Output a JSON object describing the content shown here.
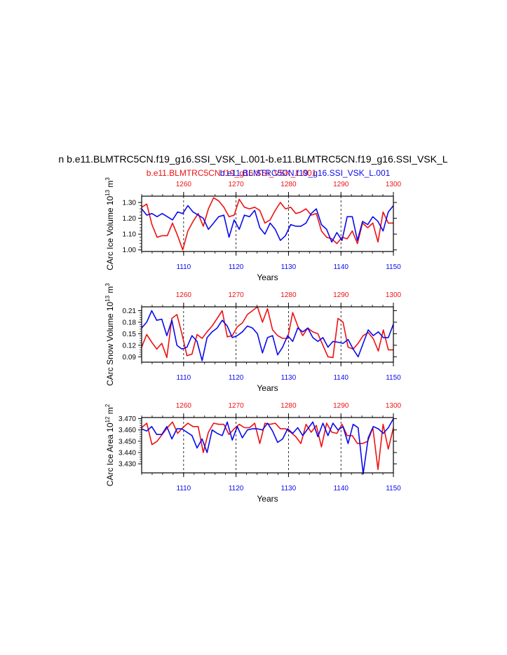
{
  "main_title": "n b.e11.BLMTRC5CN.f19_g16.SSI_VSK_L.001-b.e11.BLMTRC5CN.f19_g16.SSI_VSK_L",
  "legend": {
    "red_label": "b.e11.BLMTRC5CN.f19_g16.SSI_VSK_L.001",
    "blue_label": "b.e11.BLMTRC5CN.f19_g16.SSI_VSK_L.001"
  },
  "colors": {
    "red": "#ee1111",
    "blue": "#0a0aee",
    "axis": "#000000"
  },
  "chart_data": [
    {
      "type": "line",
      "ylabel_main": "CArc Ice Volume 10",
      "ylabel_exp": "13",
      "ylabel_unit": " m",
      "ylabel_unit_exp": "3",
      "xlabel": "Years",
      "ylim": [
        0.99,
        1.34
      ],
      "yticks": [
        "1.00",
        "1.10",
        "1.20",
        "1.30"
      ],
      "x_bottom": {
        "range": [
          1102,
          1150
        ],
        "ticks": [
          1110,
          1120,
          1130,
          1140,
          1150
        ]
      },
      "x_top": {
        "range": [
          1252,
          1300
        ],
        "ticks": [
          1260,
          1270,
          1280,
          1290,
          1300
        ]
      },
      "series": [
        {
          "color": "red",
          "values": [
            1.27,
            1.29,
            1.16,
            1.08,
            1.09,
            1.09,
            1.17,
            1.09,
            1.0,
            1.12,
            1.18,
            1.23,
            1.15,
            1.26,
            1.33,
            1.31,
            1.27,
            1.21,
            1.22,
            1.32,
            1.27,
            1.26,
            1.27,
            1.25,
            1.17,
            1.19,
            1.25,
            1.3,
            1.26,
            1.27,
            1.23,
            1.24,
            1.26,
            1.22,
            1.23,
            1.12,
            1.08,
            1.07,
            1.04,
            1.08,
            1.07,
            1.12,
            1.04,
            1.17,
            1.14,
            1.17,
            1.05,
            1.24,
            1.17,
            1.17
          ]
        },
        {
          "color": "blue",
          "values": [
            1.26,
            1.22,
            1.23,
            1.21,
            1.23,
            1.21,
            1.19,
            1.24,
            1.23,
            1.28,
            1.24,
            1.22,
            1.2,
            1.13,
            1.17,
            1.21,
            1.22,
            1.08,
            1.19,
            1.13,
            1.22,
            1.21,
            1.25,
            1.14,
            1.1,
            1.17,
            1.13,
            1.06,
            1.09,
            1.16,
            1.15,
            1.15,
            1.17,
            1.23,
            1.26,
            1.16,
            1.13,
            1.05,
            1.11,
            1.06,
            1.21,
            1.21,
            1.06,
            1.18,
            1.16,
            1.21,
            1.18,
            1.12,
            1.24,
            1.28
          ]
        }
      ]
    },
    {
      "type": "line",
      "ylabel_main": "CArc Snow Volume 10",
      "ylabel_exp": "13",
      "ylabel_unit": " m",
      "ylabel_unit_exp": "3",
      "xlabel": "Years",
      "ylim": [
        0.076,
        0.22
      ],
      "yticks": [
        "0.09",
        "0.12",
        "0.15",
        "0.18",
        "0.21"
      ],
      "x_bottom": {
        "range": [
          1102,
          1150
        ],
        "ticks": [
          1110,
          1120,
          1130,
          1140,
          1150
        ]
      },
      "x_top": {
        "range": [
          1252,
          1300
        ],
        "ticks": [
          1260,
          1270,
          1280,
          1290,
          1300
        ]
      },
      "series": [
        {
          "color": "red",
          "values": [
            0.115,
            0.148,
            0.128,
            0.11,
            0.125,
            0.088,
            0.19,
            0.2,
            0.15,
            0.093,
            0.097,
            0.148,
            0.138,
            0.155,
            0.17,
            0.19,
            0.21,
            0.142,
            0.145,
            0.168,
            0.178,
            0.2,
            0.21,
            0.22,
            0.18,
            0.215,
            0.16,
            0.145,
            0.138,
            0.138,
            0.205,
            0.17,
            0.145,
            0.165,
            0.155,
            0.15,
            0.12,
            0.09,
            0.088,
            0.19,
            0.18,
            0.115,
            0.11,
            0.125,
            0.145,
            0.153,
            0.137,
            0.105,
            0.16,
            0.108,
            0.108
          ]
        },
        {
          "color": "blue",
          "values": [
            0.165,
            0.18,
            0.21,
            0.185,
            0.188,
            0.145,
            0.185,
            0.12,
            0.11,
            0.115,
            0.145,
            0.13,
            0.08,
            0.14,
            0.155,
            0.165,
            0.185,
            0.17,
            0.14,
            0.145,
            0.155,
            0.17,
            0.165,
            0.15,
            0.1,
            0.14,
            0.145,
            0.095,
            0.115,
            0.145,
            0.13,
            0.165,
            0.155,
            0.165,
            0.14,
            0.13,
            0.14,
            0.115,
            0.13,
            0.128,
            0.125,
            0.135,
            0.11,
            0.09,
            0.125,
            0.16,
            0.145,
            0.155,
            0.14,
            0.14,
            0.175
          ]
        }
      ]
    },
    {
      "type": "line",
      "ylabel_main": "CArc Ice Area 10",
      "ylabel_exp": "12",
      "ylabel_unit": " m",
      "ylabel_unit_exp": "2",
      "xlabel": "Years",
      "ylim": [
        3.422,
        3.471
      ],
      "yticks": [
        "3.430",
        "3.440",
        "3.450",
        "3.460",
        "3.470"
      ],
      "x_bottom": {
        "range": [
          1102,
          1150
        ],
        "ticks": [
          1110,
          1120,
          1130,
          1140,
          1150
        ]
      },
      "x_top": {
        "range": [
          1252,
          1300
        ],
        "ticks": [
          1260,
          1270,
          1280,
          1290,
          1300
        ]
      },
      "series": [
        {
          "color": "red",
          "values": [
            3.462,
            3.466,
            3.447,
            3.45,
            3.456,
            3.462,
            3.467,
            3.457,
            3.462,
            3.466,
            3.463,
            3.463,
            3.44,
            3.458,
            3.466,
            3.465,
            3.465,
            3.456,
            3.461,
            3.465,
            3.462,
            3.462,
            3.466,
            3.448,
            3.466,
            3.465,
            3.466,
            3.461,
            3.461,
            3.458,
            3.454,
            3.448,
            3.465,
            3.458,
            3.464,
            3.445,
            3.466,
            3.458,
            3.457,
            3.465,
            3.455,
            3.455,
            3.448,
            3.448,
            3.45,
            3.462,
            3.425,
            3.465,
            3.443,
            3.462
          ]
        },
        {
          "color": "blue",
          "values": [
            3.461,
            3.459,
            3.463,
            3.456,
            3.456,
            3.463,
            3.452,
            3.461,
            3.461,
            3.458,
            3.455,
            3.444,
            3.452,
            3.44,
            3.46,
            3.457,
            3.455,
            3.467,
            3.451,
            3.463,
            3.453,
            3.46,
            3.461,
            3.461,
            3.46,
            3.466,
            3.459,
            3.449,
            3.452,
            3.461,
            3.457,
            3.462,
            3.455,
            3.461,
            3.467,
            3.454,
            3.466,
            3.455,
            3.466,
            3.46,
            3.463,
            3.448,
            3.465,
            3.462,
            3.421,
            3.453,
            3.463,
            3.461,
            3.457,
            3.462,
            3.47
          ]
        }
      ]
    }
  ]
}
